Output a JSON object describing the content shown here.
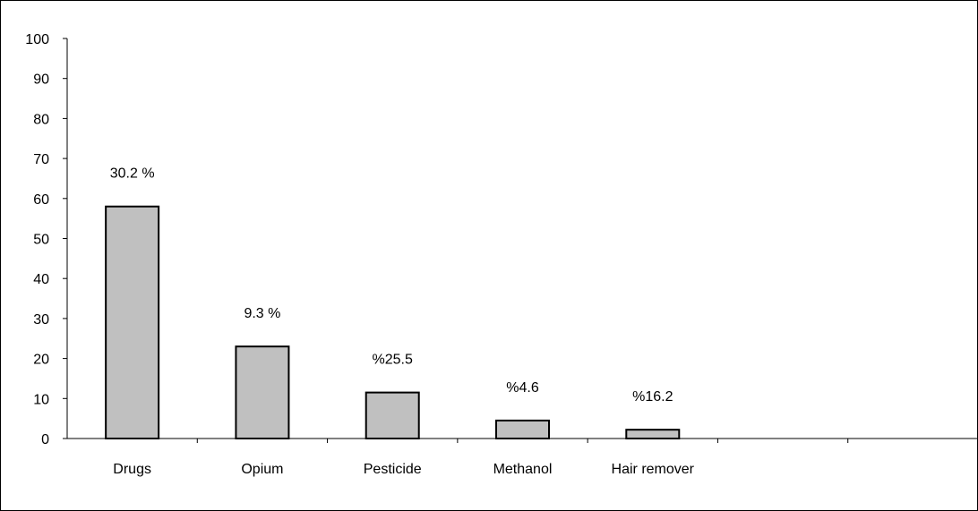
{
  "chart_data": {
    "type": "bar",
    "categories": [
      "Drugs",
      "Opium",
      "Pesticide",
      "Methanol",
      "Hair remover",
      "",
      ""
    ],
    "values": [
      58,
      23,
      11.5,
      4.5,
      2.2,
      null,
      null
    ],
    "data_labels": [
      "30.2 %",
      "9.3 %",
      "%25.5",
      "%4.6",
      "%16.2",
      "",
      ""
    ],
    "title": "",
    "xlabel": "",
    "ylabel": "",
    "ylim": [
      0,
      100
    ],
    "yticks": [
      "0",
      "10",
      "20",
      "30",
      "40",
      "50",
      "60",
      "70",
      "80",
      "90",
      "100"
    ],
    "grid": false,
    "legend": "none",
    "bar_color": "#c0c0c0",
    "bar_edge_color": "#000000"
  }
}
